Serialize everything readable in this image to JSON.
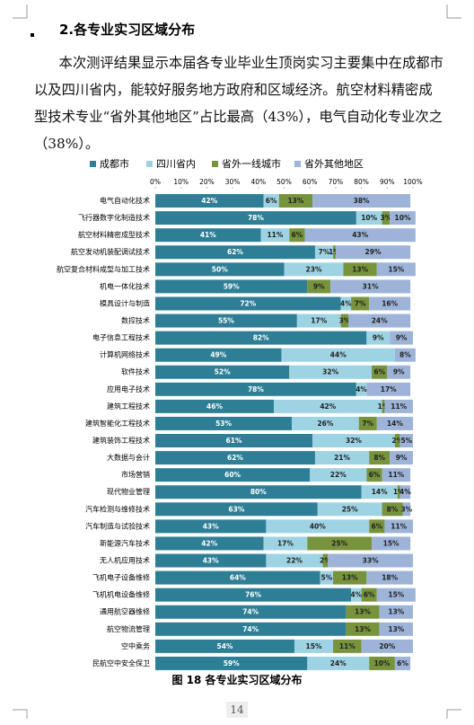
{
  "heading": "2.各专业实习区域分布",
  "paragraph": "本次测评结果显示本届各专业毕业生顶岗实习主要集中在成都市以及四川省内，能较好服务地方政府和区域经济。航空材料精密成型技术专业“省外其他地区”占比最高（43%），电气自动化专业次之（38%）。",
  "chart_data": {
    "type": "stacked_barh",
    "categories": [
      "电气自动化技术",
      "飞行器数字化制造技术",
      "航空材料精密成型技术",
      "航空发动机装配调试技术",
      "航空复合材料成型与加工技术",
      "机电一体化技术",
      "模具设计与制造",
      "数控技术",
      "电子信息工程技术",
      "计算机网络技术",
      "软件技术",
      "应用电子技术",
      "建筑工程技术",
      "建筑智能化工程技术",
      "建筑装饰工程技术",
      "大数据与会计",
      "市场营销",
      "现代物业管理",
      "汽车检测与维修技术",
      "汽车制造与试验技术",
      "新能源汽车技术",
      "无人机应用技术",
      "飞机电子设备维修",
      "飞机机电设备维修",
      "通用航空器维修",
      "航空物流管理",
      "空中乘务",
      "民航空中安全保卫"
    ],
    "series": [
      {
        "name": "成都市",
        "color": "#2e7f96",
        "values": [
          42,
          78,
          41,
          62,
          50,
          59,
          72,
          55,
          82,
          49,
          52,
          78,
          46,
          53,
          61,
          62,
          60,
          80,
          63,
          43,
          42,
          43,
          64,
          76,
          74,
          74,
          54,
          59
        ],
        "value_labels": [
          "42%",
          "78%",
          "41%",
          "62%",
          "50%",
          "59%",
          "72%",
          "55%",
          "82%",
          "49%",
          "52%",
          "78%",
          "46%",
          "53%",
          "61%",
          "62%",
          "60%",
          "80%",
          "63%",
          "43%",
          "42%",
          "43%",
          "64%",
          "76%",
          "74%",
          "74%",
          "54%",
          "59%"
        ]
      },
      {
        "name": "四川省内",
        "color": "#9dd3e3",
        "values": [
          6,
          10,
          11,
          7,
          23,
          0,
          4,
          17,
          9,
          44,
          32,
          4,
          42,
          26,
          32,
          21,
          22,
          14,
          25,
          40,
          17,
          22,
          5,
          4,
          0,
          0,
          15,
          24
        ],
        "value_labels": [
          "6%",
          "10%",
          "11%",
          "7%",
          "23%",
          null,
          "4%",
          "17%",
          "9%",
          "44%",
          "32%",
          "4%",
          "42%",
          "26%",
          "32%",
          "21%",
          "22%",
          "14%",
          "25%",
          "40%",
          "17%",
          "22%",
          "5%",
          "4%",
          null,
          null,
          "15%",
          "24%"
        ]
      },
      {
        "name": "省外一线城市",
        "color": "#77933c",
        "values": [
          13,
          3,
          6,
          1,
          13,
          9,
          7,
          3,
          0,
          0,
          6,
          0,
          1,
          7,
          2,
          8,
          6,
          1,
          8,
          6,
          25,
          2,
          13,
          6,
          13,
          13,
          11,
          10
        ],
        "value_labels": [
          "13%",
          "3%",
          "6%",
          "1%",
          "13%",
          "9%",
          "7%",
          "3%",
          null,
          null,
          "6%",
          null,
          "1%",
          "7%",
          "2%",
          "8%",
          "6%",
          "1%",
          "8%",
          "6%",
          "25%",
          "2%",
          "13%",
          "6%",
          "13%",
          "13%",
          "11%",
          "10%"
        ]
      },
      {
        "name": "省外其他地区",
        "color": "#9db4d8",
        "values": [
          38,
          10,
          43,
          29,
          15,
          31,
          16,
          24,
          9,
          8,
          9,
          17,
          11,
          14,
          5,
          9,
          11,
          4,
          3,
          11,
          15,
          33,
          18,
          15,
          13,
          13,
          20,
          6
        ],
        "value_labels": [
          "38%",
          "10%",
          "43%",
          "29%",
          "15%",
          "31%",
          "16%",
          "24%",
          "9%",
          "8%",
          "9%",
          "17%",
          "11%",
          "14%",
          "5%",
          "9%",
          "11%",
          "4%",
          "3%",
          "11%",
          "15%",
          "33%",
          "18%",
          "15%",
          "13%",
          "13%",
          "20%",
          "6%"
        ]
      }
    ],
    "xlim": [
      0,
      100
    ],
    "xticks": [
      {
        "value": 0,
        "label": "0%"
      },
      {
        "value": 10,
        "label": "10%"
      },
      {
        "value": 20,
        "label": "20%"
      },
      {
        "value": 30,
        "label": "30%"
      },
      {
        "value": 40,
        "label": "40%"
      },
      {
        "value": 50,
        "label": "50%"
      },
      {
        "value": 60,
        "label": "60%"
      },
      {
        "value": 70,
        "label": "70%"
      },
      {
        "value": 80,
        "label": "80%"
      },
      {
        "value": 90,
        "label": "90%"
      },
      {
        "value": 100,
        "label": "100%"
      }
    ],
    "legend": "top"
  },
  "caption": "图 18  各专业实习区域分布",
  "page_number": "14"
}
